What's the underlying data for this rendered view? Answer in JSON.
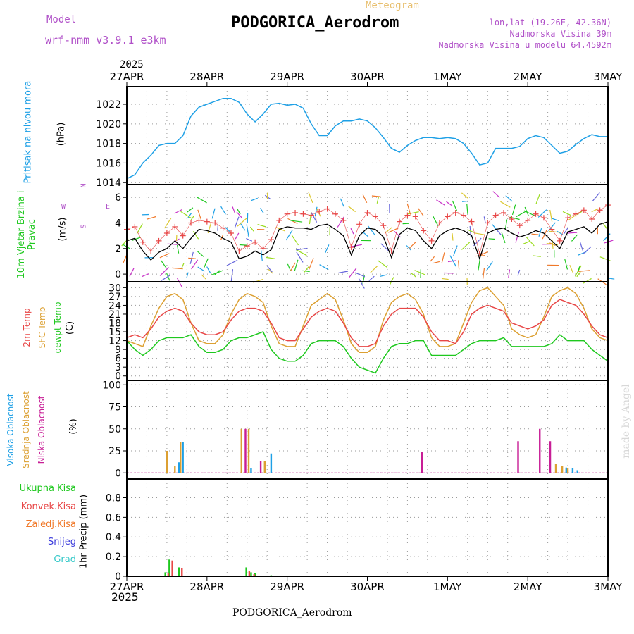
{
  "header": {
    "model_label": "Model",
    "model_name": "wrf-nmm_v3.9.1 e3km",
    "title": "PODGORICA_Aerodrom",
    "meteogram_label": "Meteogram",
    "lonlat": "lon,lat (19.26E, 42.36N)",
    "altitude": "Nadmorska Visina 39m",
    "model_altitude": "Nadmorska Visina u modelu 64.4592m",
    "year_top": "2025",
    "year_bottom": "2025"
  },
  "footer": {
    "station": "PODGORICA_Aerodrom",
    "credit": "made by Angel"
  },
  "colors": {
    "pressure": "#1ea0e6",
    "temp2m": "#e84646",
    "sfc": "#dca032",
    "dewpt": "#1ec81e",
    "low_cloud": "#c81e96",
    "mid_cloud": "#dca032",
    "high_cloud": "#1ea0e6",
    "total_precip": "#1ec81e",
    "conv_precip": "#e84646",
    "frozen": "#f07828",
    "snow": "#3c3cdc",
    "hail": "#32c8c8",
    "wind_speed": "#000000",
    "wind_gust": "#e84646"
  },
  "chart_data": [
    {
      "type": "line",
      "id": "pressure",
      "ylabel": "Pritisak na nivou mora",
      "unit": "(hPa)",
      "ylim": [
        1013.8,
        1023.8
      ],
      "yticks": [
        1014,
        1016,
        1018,
        1020,
        1022
      ],
      "xlabels": [
        "27APR",
        "28APR",
        "29APR",
        "30APR",
        "1MAY",
        "2MAY",
        "3MAY"
      ],
      "x": [
        0,
        0.05,
        0.1,
        0.2,
        0.3,
        0.4,
        0.5,
        0.6,
        0.7,
        0.8,
        0.9,
        1.0,
        1.1,
        1.2,
        1.3,
        1.4,
        1.5,
        1.6,
        1.7,
        1.8,
        1.9,
        2.0,
        2.1,
        2.2,
        2.3,
        2.4,
        2.5,
        2.6,
        2.7,
        2.8,
        2.9,
        3.0,
        3.1,
        3.2,
        3.3,
        3.4,
        3.5,
        3.6,
        3.7,
        3.8,
        3.9,
        4.0,
        4.1,
        4.2,
        4.3,
        4.4,
        4.5,
        4.6,
        4.7,
        4.8,
        4.9,
        5.0,
        5.1,
        5.2,
        5.3,
        5.4,
        5.5,
        5.6,
        5.7,
        5.8,
        5.9,
        6.0
      ],
      "series": [
        {
          "name": "MSLP",
          "values": [
            1014.4,
            1014.6,
            1014.8,
            1016.0,
            1016.8,
            1017.8,
            1018.0,
            1018.0,
            1018.8,
            1020.8,
            1021.7,
            1022.0,
            1022.3,
            1022.6,
            1022.6,
            1022.2,
            1021.0,
            1020.2,
            1021.0,
            1022.0,
            1022.1,
            1021.9,
            1022.0,
            1021.6,
            1020.0,
            1018.8,
            1018.8,
            1019.8,
            1020.3,
            1020.3,
            1020.5,
            1020.3,
            1019.6,
            1018.6,
            1017.5,
            1017.1,
            1017.8,
            1018.3,
            1018.6,
            1018.6,
            1018.5,
            1018.6,
            1018.5,
            1018.0,
            1017.0,
            1015.8,
            1016.0,
            1017.5,
            1017.5,
            1017.5,
            1017.7,
            1018.5,
            1018.8,
            1018.6,
            1017.8,
            1017.0,
            1017.2,
            1017.9,
            1018.5,
            1018.9,
            1018.7,
            1018.7
          ]
        }
      ]
    },
    {
      "type": "line",
      "id": "wind",
      "ylabel": "10m Vjetar Brzina i Pravac",
      "unit": "(m/s)",
      "compass": {
        "n": "N",
        "s": "S",
        "e": "E",
        "w": "W"
      },
      "ylim": [
        -0.6,
        7.0
      ],
      "yticks": [
        0,
        2,
        4,
        6
      ],
      "x": [
        0,
        0.1,
        0.2,
        0.3,
        0.4,
        0.5,
        0.6,
        0.7,
        0.8,
        0.9,
        1.0,
        1.1,
        1.2,
        1.3,
        1.4,
        1.5,
        1.6,
        1.7,
        1.8,
        1.9,
        2.0,
        2.1,
        2.2,
        2.3,
        2.4,
        2.5,
        2.6,
        2.7,
        2.8,
        2.9,
        3.0,
        3.1,
        3.2,
        3.3,
        3.4,
        3.5,
        3.6,
        3.7,
        3.8,
        3.9,
        4.0,
        4.1,
        4.2,
        4.3,
        4.4,
        4.5,
        4.6,
        4.7,
        4.8,
        4.9,
        5.0,
        5.1,
        5.2,
        5.3,
        5.4,
        5.5,
        5.6,
        5.7,
        5.8,
        5.9,
        6.0
      ],
      "series": [
        {
          "name": "speed",
          "values": [
            2.6,
            2.8,
            1.8,
            1.1,
            1.7,
            2.0,
            2.6,
            2.0,
            2.8,
            3.5,
            3.4,
            3.2,
            2.8,
            2.5,
            1.2,
            1.4,
            1.8,
            1.5,
            1.9,
            3.5,
            3.7,
            3.6,
            3.6,
            3.5,
            3.8,
            3.9,
            3.5,
            3.0,
            1.5,
            3.0,
            3.6,
            3.5,
            2.9,
            1.3,
            3.1,
            3.6,
            3.4,
            2.6,
            2.0,
            3.0,
            3.4,
            3.6,
            3.4,
            3.0,
            1.2,
            3.2,
            3.5,
            3.6,
            3.2,
            2.9,
            3.1,
            3.4,
            3.2,
            2.6,
            2.0,
            3.3,
            3.5,
            3.7,
            3.2,
            3.9,
            4.1
          ]
        },
        {
          "name": "gust",
          "values": [
            3.5,
            3.7,
            2.5,
            1.8,
            2.6,
            3.2,
            3.7,
            3.0,
            4.0,
            4.2,
            4.1,
            4.0,
            3.6,
            3.2,
            1.8,
            2.2,
            2.5,
            2.0,
            2.7,
            4.2,
            4.7,
            4.8,
            4.7,
            4.6,
            4.9,
            5.1,
            4.7,
            4.2,
            2.1,
            3.9,
            4.8,
            4.5,
            3.8,
            1.8,
            4.1,
            4.6,
            4.5,
            3.4,
            2.6,
            4.0,
            4.5,
            4.8,
            4.6,
            4.1,
            1.6,
            4.0,
            4.6,
            4.8,
            4.3,
            3.8,
            4.2,
            4.7,
            4.4,
            3.5,
            2.6,
            4.4,
            4.7,
            5.0,
            4.3,
            5.0,
            5.4
          ]
        }
      ]
    },
    {
      "type": "line",
      "id": "temperature",
      "ylabel_parts": [
        "2m Temp",
        "SFC Temp",
        "dewpt Temp"
      ],
      "unit": "(C)",
      "ylim": [
        -1.5,
        32
      ],
      "yticks": [
        0,
        3,
        6,
        9,
        12,
        15,
        18,
        21,
        24,
        27,
        30
      ],
      "x": [
        0,
        0.1,
        0.2,
        0.3,
        0.4,
        0.5,
        0.6,
        0.7,
        0.8,
        0.9,
        1.0,
        1.1,
        1.2,
        1.3,
        1.4,
        1.5,
        1.6,
        1.7,
        1.8,
        1.9,
        2.0,
        2.1,
        2.2,
        2.3,
        2.4,
        2.5,
        2.6,
        2.7,
        2.8,
        2.9,
        3.0,
        3.1,
        3.2,
        3.3,
        3.4,
        3.5,
        3.6,
        3.7,
        3.8,
        3.9,
        4.0,
        4.1,
        4.2,
        4.3,
        4.4,
        4.5,
        4.6,
        4.7,
        4.8,
        4.9,
        5.0,
        5.1,
        5.2,
        5.3,
        5.4,
        5.5,
        5.6,
        5.7,
        5.8,
        5.9,
        6.0
      ],
      "series": [
        {
          "name": "2m Temp",
          "values": [
            13,
            14,
            13,
            16,
            20,
            22,
            23,
            22,
            18,
            15,
            14,
            14,
            15,
            19,
            22,
            23,
            23,
            22,
            18,
            13,
            12,
            12,
            16,
            20,
            22,
            23,
            22,
            18,
            13,
            10,
            10,
            11,
            17,
            21,
            23,
            23,
            23,
            20,
            15,
            12,
            12,
            11,
            15,
            21,
            23,
            24,
            23,
            22,
            18,
            17,
            16,
            17,
            19,
            24,
            26,
            25,
            24,
            21,
            17,
            14,
            13
          ]
        },
        {
          "name": "SFC Temp",
          "values": [
            12,
            11,
            10,
            17,
            23,
            27,
            28,
            26,
            18,
            12,
            11,
            11,
            14,
            21,
            26,
            28,
            27,
            25,
            17,
            11,
            10,
            10,
            17,
            24,
            26,
            28,
            26,
            19,
            11,
            8,
            8,
            10,
            19,
            25,
            27,
            28,
            26,
            21,
            13,
            10,
            10,
            11,
            18,
            25,
            29,
            30,
            27,
            24,
            16,
            14,
            13,
            14,
            20,
            27,
            29,
            30,
            28,
            23,
            16,
            13,
            12
          ]
        },
        {
          "name": "dewpt Temp",
          "values": [
            12,
            9,
            7,
            9,
            12,
            13,
            13,
            13,
            14,
            10,
            8,
            8,
            9,
            12,
            13,
            13,
            14,
            15,
            9,
            6,
            5,
            5,
            7,
            11,
            12,
            12,
            12,
            10,
            6,
            3,
            2,
            1,
            6,
            10,
            11,
            11,
            12,
            12,
            7,
            7,
            7,
            7,
            9,
            11,
            12,
            12,
            12,
            13,
            10,
            10,
            10,
            10,
            10,
            11,
            14,
            12,
            12,
            12,
            9,
            7,
            5
          ]
        }
      ]
    },
    {
      "type": "bar",
      "id": "cloud",
      "ylabel_parts": [
        "Visoka Oblacnost",
        "Srednja Oblacnost",
        "Niska Oblacnost"
      ],
      "unit": "(%)",
      "ylim": [
        -7,
        105
      ],
      "yticks": [
        0,
        25,
        50,
        75,
        100
      ],
      "series": [
        {
          "name": "Visoka",
          "x": [
            0.65,
            0.7,
            1.55,
            1.8,
            5.48,
            5.56,
            5.62
          ],
          "values": [
            12,
            35,
            5,
            22,
            6,
            5,
            3
          ]
        },
        {
          "name": "Srednja",
          "x": [
            0.5,
            0.6,
            0.67,
            1.43,
            1.52,
            1.72,
            5.35,
            5.43,
            5.5
          ],
          "values": [
            25,
            8,
            35,
            50,
            50,
            13,
            10,
            8,
            5
          ]
        },
        {
          "name": "Niska",
          "x": [
            1.48,
            1.67,
            3.68,
            4.88,
            5.15,
            5.28
          ],
          "values": [
            50,
            13,
            24,
            36,
            50,
            36
          ]
        }
      ]
    },
    {
      "type": "bar",
      "id": "precip",
      "ylabel": "1hr Precip (mm)",
      "legend": [
        "Ukupna Kisa",
        "Konvek.Kisa",
        "Zaledj.Kisa",
        "Snijeg",
        "Grad"
      ],
      "ylim": [
        0,
        0.99
      ],
      "yticks": [
        0,
        0.2,
        0.4,
        0.6,
        0.8
      ],
      "series": [
        {
          "name": "Ukupna Kisa",
          "x": [
            0.48,
            0.53,
            0.65,
            1.49,
            1.55,
            1.6,
            1.8
          ],
          "values": [
            0.04,
            0.17,
            0.09,
            0.09,
            0.04,
            0.03,
            0.01
          ]
        },
        {
          "name": "Konvek.Kisa",
          "x": [
            0.5,
            0.55,
            0.67,
            1.51,
            1.57
          ],
          "values": [
            0.03,
            0.16,
            0.08,
            0.05,
            0.02
          ]
        }
      ]
    }
  ]
}
